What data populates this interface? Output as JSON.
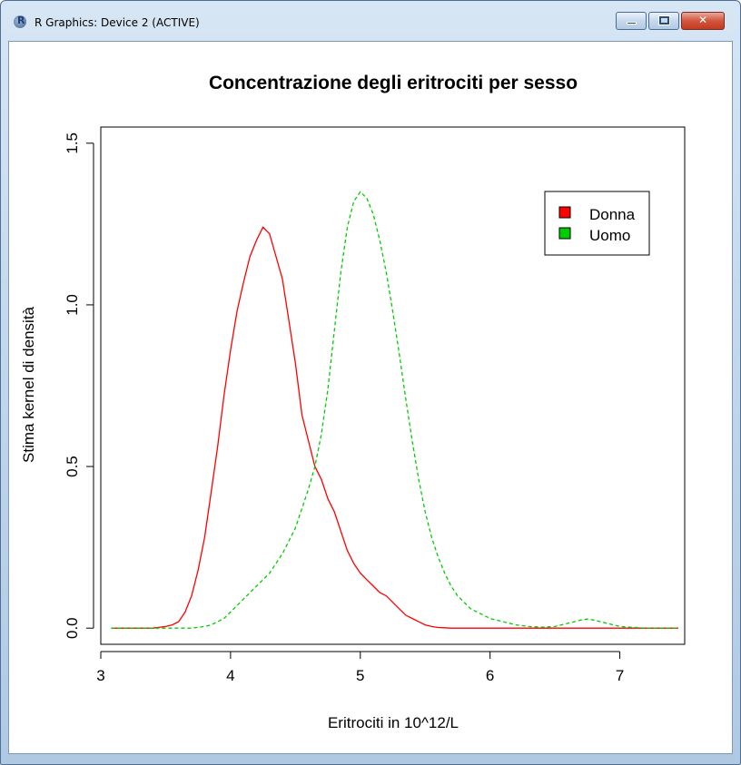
{
  "window": {
    "title": "R Graphics: Device 2 (ACTIVE)",
    "icon": "r-logo-icon",
    "icon_text": "R"
  },
  "controls": {
    "minimize": "minimize-icon",
    "maximize": "maximize-icon",
    "close": "close-icon",
    "close_glyph": "✕"
  },
  "colors": {
    "donna": "#ff0000",
    "uomo": "#00cd00",
    "titlebar": "#bcd3ea",
    "close": "#c23a22"
  },
  "chart_data": {
    "type": "line",
    "title": "Concentrazione degli eritrociti per sesso",
    "xlabel": "Eritrociti in 10^12/L",
    "ylabel": "Stima kernel di densità",
    "xlim": [
      3.0,
      7.5
    ],
    "ylim": [
      -0.05,
      1.55
    ],
    "xticks": [
      "3",
      "4",
      "5",
      "6",
      "7"
    ],
    "yticks": [
      "0.0",
      "0.5",
      "1.0",
      "1.5"
    ],
    "legend_position": "top-right",
    "series": [
      {
        "name": "Donna",
        "color": "#ff0000",
        "style": "solid",
        "x": [
          3.08,
          3.2,
          3.3,
          3.4,
          3.5,
          3.55,
          3.6,
          3.65,
          3.7,
          3.75,
          3.8,
          3.85,
          3.9,
          3.95,
          4.0,
          4.05,
          4.1,
          4.15,
          4.2,
          4.25,
          4.3,
          4.35,
          4.4,
          4.45,
          4.5,
          4.55,
          4.6,
          4.65,
          4.7,
          4.75,
          4.8,
          4.85,
          4.9,
          4.95,
          5.0,
          5.05,
          5.1,
          5.15,
          5.2,
          5.25,
          5.3,
          5.35,
          5.4,
          5.45,
          5.5,
          5.55,
          5.6,
          5.65,
          5.7,
          5.8,
          6.0,
          6.5,
          7.0,
          7.45
        ],
        "y": [
          0.0,
          0.0,
          0.0,
          0.0,
          0.005,
          0.01,
          0.02,
          0.05,
          0.1,
          0.18,
          0.28,
          0.42,
          0.56,
          0.72,
          0.86,
          0.98,
          1.07,
          1.15,
          1.2,
          1.24,
          1.22,
          1.15,
          1.08,
          0.95,
          0.82,
          0.66,
          0.58,
          0.5,
          0.46,
          0.4,
          0.36,
          0.3,
          0.24,
          0.2,
          0.17,
          0.15,
          0.13,
          0.11,
          0.1,
          0.08,
          0.06,
          0.04,
          0.03,
          0.02,
          0.01,
          0.005,
          0.002,
          0.001,
          0.0,
          0.0,
          0.0,
          0.0,
          0.0,
          0.0
        ]
      },
      {
        "name": "Uomo",
        "color": "#00cd00",
        "style": "dashed",
        "x": [
          3.08,
          3.4,
          3.6,
          3.7,
          3.8,
          3.85,
          3.9,
          3.95,
          4.0,
          4.05,
          4.1,
          4.15,
          4.2,
          4.25,
          4.3,
          4.35,
          4.4,
          4.45,
          4.5,
          4.55,
          4.6,
          4.65,
          4.7,
          4.75,
          4.8,
          4.85,
          4.9,
          4.95,
          5.0,
          5.05,
          5.1,
          5.15,
          5.2,
          5.25,
          5.3,
          5.35,
          5.4,
          5.45,
          5.5,
          5.55,
          5.6,
          5.65,
          5.7,
          5.75,
          5.8,
          5.85,
          5.9,
          5.95,
          6.0,
          6.1,
          6.2,
          6.3,
          6.4,
          6.5,
          6.6,
          6.7,
          6.75,
          6.8,
          6.9,
          7.0,
          7.2,
          7.45
        ],
        "y": [
          0.0,
          0.0,
          0.0,
          0.0,
          0.005,
          0.01,
          0.02,
          0.03,
          0.05,
          0.07,
          0.09,
          0.11,
          0.13,
          0.15,
          0.17,
          0.2,
          0.23,
          0.27,
          0.31,
          0.37,
          0.43,
          0.5,
          0.6,
          0.74,
          0.92,
          1.1,
          1.24,
          1.32,
          1.35,
          1.33,
          1.28,
          1.2,
          1.1,
          0.98,
          0.85,
          0.71,
          0.58,
          0.46,
          0.36,
          0.28,
          0.22,
          0.17,
          0.13,
          0.1,
          0.08,
          0.06,
          0.05,
          0.04,
          0.03,
          0.02,
          0.01,
          0.005,
          0.003,
          0.005,
          0.015,
          0.025,
          0.028,
          0.025,
          0.015,
          0.005,
          0.0,
          0.0
        ]
      }
    ]
  }
}
